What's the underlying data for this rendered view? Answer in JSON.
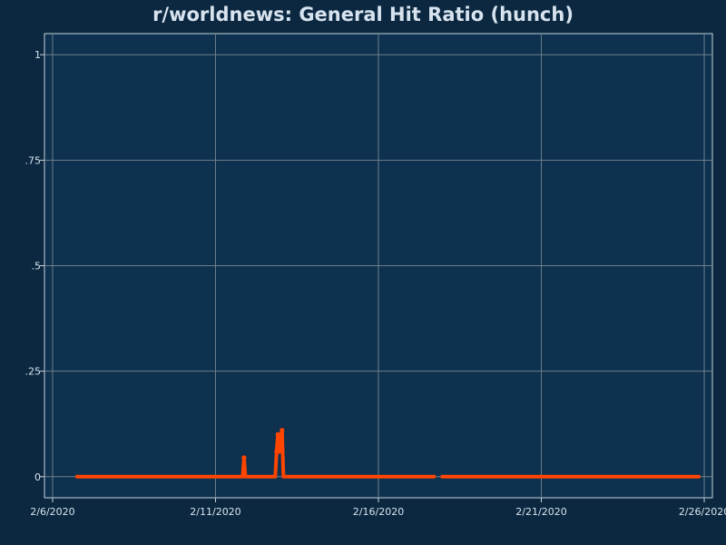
{
  "chart_data": {
    "type": "line",
    "title": "r/worldnews: General Hit Ratio (hunch)",
    "xlabel": "",
    "ylabel": "",
    "x_is_date": true,
    "xlim": [
      "2020-02-05T18:00",
      "2020-02-26T06:00"
    ],
    "ylim": [
      -0.05,
      1.05
    ],
    "x_ticks": [
      {
        "value": "2020-02-06T00:00",
        "label": "2/6/2020"
      },
      {
        "value": "2020-02-11T00:00",
        "label": "2/11/2020"
      },
      {
        "value": "2020-02-16T00:00",
        "label": "2/16/2020"
      },
      {
        "value": "2020-02-21T00:00",
        "label": "2/21/2020"
      },
      {
        "value": "2020-02-26T00:00",
        "label": "2/26/2020"
      }
    ],
    "y_ticks": [
      {
        "value": 0,
        "label": "0"
      },
      {
        "value": 0.25,
        "label": ".25"
      },
      {
        "value": 0.5,
        "label": ".5"
      },
      {
        "value": 0.75,
        "label": ".75"
      },
      {
        "value": 1,
        "label": "1"
      }
    ],
    "grid": true,
    "colors": {
      "background": "#0b2840",
      "plot_background": "#0d314e",
      "grid": "#6e7f8c",
      "series": "#ff4500",
      "text": "#d7e3ee"
    },
    "series": [
      {
        "segments": [
          [
            {
              "x": "2020-02-06T18:00",
              "y": 0
            },
            {
              "x": "2020-02-08T00:00",
              "y": 0
            },
            {
              "x": "2020-02-10T00:00",
              "y": 0
            },
            {
              "x": "2020-02-11T20:00",
              "y": 0
            },
            {
              "x": "2020-02-11T21:00",
              "y": 0.045
            },
            {
              "x": "2020-02-11T22:00",
              "y": 0
            },
            {
              "x": "2020-02-12T00:00",
              "y": 0
            },
            {
              "x": "2020-02-12T20:00",
              "y": 0
            },
            {
              "x": "2020-02-12T21:00",
              "y": 0.06
            },
            {
              "x": "2020-02-12T22:00",
              "y": 0.1
            },
            {
              "x": "2020-02-12T23:00",
              "y": 0.06
            },
            {
              "x": "2020-02-13T00:00",
              "y": 0.09
            },
            {
              "x": "2020-02-13T01:00",
              "y": 0.11
            },
            {
              "x": "2020-02-13T02:00",
              "y": 0
            },
            {
              "x": "2020-02-14T00:00",
              "y": 0
            },
            {
              "x": "2020-02-16T00:00",
              "y": 0
            },
            {
              "x": "2020-02-17T17:00",
              "y": 0
            }
          ],
          [
            {
              "x": "2020-02-17T23:00",
              "y": 0
            },
            {
              "x": "2020-02-20T00:00",
              "y": 0
            },
            {
              "x": "2020-02-22T00:00",
              "y": 0
            },
            {
              "x": "2020-02-24T00:00",
              "y": 0
            },
            {
              "x": "2020-02-25T20:00",
              "y": 0
            }
          ]
        ]
      }
    ]
  }
}
